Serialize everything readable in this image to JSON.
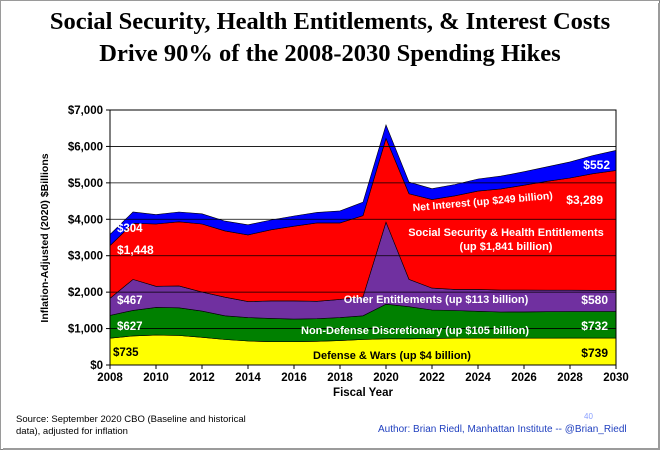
{
  "title_line1": "Social Security, Health Entitlements, & Interest Costs",
  "title_line2": "Drive 90% of  the 2008-2030 Spending Hikes",
  "source": "Source: September 2020 CBO (Baseline and historical data), adjusted for inflation",
  "author": "Author: Brian Riedl, Manhattan Institute -- @Brian_Riedl",
  "page_number": "40",
  "chart_data": {
    "type": "area",
    "stacked": true,
    "title": "Social Security, Health Entitlements, & Interest Costs Drive 90% of the 2008-2030 Spending Hikes",
    "xlabel": "Fiscal Year",
    "ylabel": "Inflation-Adjusted (2020) $Billions",
    "xlim": [
      2008,
      2030
    ],
    "ylim": [
      0,
      7000
    ],
    "x_ticks": [
      2008,
      2010,
      2012,
      2014,
      2016,
      2018,
      2020,
      2022,
      2024,
      2026,
      2028,
      2030
    ],
    "y_ticks": [
      "$0",
      "$1,000",
      "$2,000",
      "$3,000",
      "$4,000",
      "$5,000",
      "$6,000",
      "$7,000"
    ],
    "grid": true,
    "x": [
      2008,
      2009,
      2010,
      2011,
      2012,
      2013,
      2014,
      2015,
      2016,
      2017,
      2018,
      2019,
      2020,
      2021,
      2022,
      2023,
      2024,
      2025,
      2026,
      2027,
      2028,
      2029,
      2030
    ],
    "series": [
      {
        "name": "Defense & Wars",
        "color": "#ffff00",
        "values": [
          735,
          800,
          820,
          810,
          760,
          700,
          660,
          640,
          640,
          650,
          670,
          700,
          720,
          720,
          730,
          735,
          735,
          735,
          737,
          737,
          739,
          739,
          739
        ]
      },
      {
        "name": "Non-Defense Discretionary",
        "color": "#008000",
        "values": [
          627,
          700,
          760,
          760,
          720,
          650,
          640,
          640,
          620,
          620,
          630,
          650,
          950,
          880,
          780,
          760,
          740,
          720,
          720,
          725,
          730,
          730,
          732
        ]
      },
      {
        "name": "Other Entitlements",
        "color": "#7030a0",
        "values": [
          467,
          850,
          580,
          600,
          520,
          510,
          440,
          480,
          500,
          480,
          500,
          520,
          2250,
          750,
          600,
          580,
          600,
          600,
          600,
          590,
          585,
          582,
          580
        ]
      },
      {
        "name": "Social Security & Health Entitlements",
        "color": "#ff0000",
        "values": [
          1448,
          1540,
          1710,
          1760,
          1870,
          1820,
          1830,
          1950,
          2050,
          2150,
          2100,
          2230,
          2300,
          2350,
          2430,
          2570,
          2700,
          2780,
          2880,
          2990,
          3080,
          3200,
          3289
        ]
      },
      {
        "name": "Net Interest",
        "color": "#0000ff",
        "values": [
          304,
          310,
          260,
          270,
          280,
          270,
          280,
          270,
          280,
          290,
          330,
          370,
          370,
          320,
          300,
          310,
          330,
          350,
          370,
          400,
          440,
          500,
          552
        ]
      }
    ],
    "annotations": [
      {
        "text": "$304",
        "series": "Net Interest"
      },
      {
        "text": "$1,448",
        "series": "Social Security & Health Entitlements"
      },
      {
        "text": "$467",
        "series": "Other Entitlements"
      },
      {
        "text": "$627",
        "series": "Non-Defense Discretionary"
      },
      {
        "text": "$735",
        "series": "Defense & Wars"
      },
      {
        "text": "$552",
        "series": "Net Interest"
      },
      {
        "text": "$3,289",
        "series": "Social Security & Health Entitlements"
      },
      {
        "text": "$580",
        "series": "Other Entitlements"
      },
      {
        "text": "$732",
        "series": "Non-Defense Discretionary"
      },
      {
        "text": "$739",
        "series": "Defense & Wars"
      },
      {
        "text": "Net Interest (up $249 billion)",
        "series": "Net Interest"
      },
      {
        "text": "Social Security & Health Entitlements",
        "series": "Social Security & Health Entitlements"
      },
      {
        "text": "(up $1,841 billion)",
        "series": "Social Security & Health Entitlements"
      },
      {
        "text": "Other Entitlements (up $113 billion)",
        "series": "Other Entitlements"
      },
      {
        "text": "Non-Defense Discretionary (up $105 billion)",
        "series": "Non-Defense Discretionary"
      },
      {
        "text": "Defense & Wars (up $4 billion)",
        "series": "Defense & Wars"
      }
    ]
  }
}
